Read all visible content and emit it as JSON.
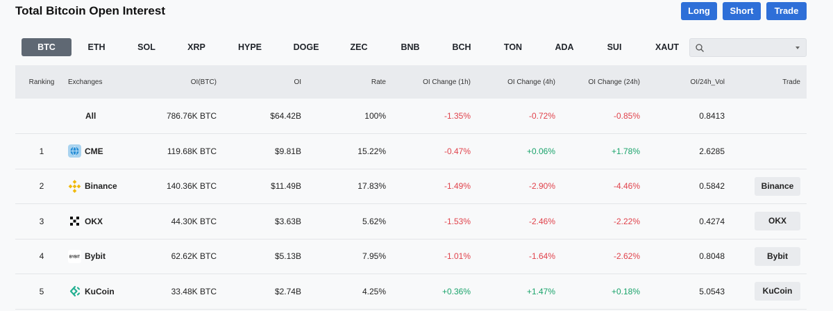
{
  "header": {
    "title": "Total Bitcoin Open Interest",
    "long_label": "Long",
    "short_label": "Short",
    "trade_label": "Trade"
  },
  "tabs": [
    "BTC",
    "ETH",
    "SOL",
    "XRP",
    "HYPE",
    "DOGE",
    "ZEC",
    "BNB",
    "BCH",
    "TON",
    "ADA",
    "SUI",
    "XAUT"
  ],
  "active_tab": "BTC",
  "search": {
    "placeholder": ""
  },
  "columns": [
    "Ranking",
    "Exchanges",
    "OI(BTC)",
    "OI",
    "Rate",
    "OI Change (1h)",
    "OI Change (4h)",
    "OI Change (24h)",
    "OI/24h_Vol",
    "Trade"
  ],
  "rows": [
    {
      "rank": "",
      "exchange": "All",
      "oi_btc": "786.76K BTC",
      "oi": "$64.42B",
      "rate": "100%",
      "ch1h": "-1.35%",
      "ch4h": "-0.72%",
      "ch24h": "-0.85%",
      "vol": "0.8413",
      "trade": ""
    },
    {
      "rank": "1",
      "exchange": "CME",
      "logo": "cme-logo-icon",
      "oi_btc": "119.68K BTC",
      "oi": "$9.81B",
      "rate": "15.22%",
      "ch1h": "-0.47%",
      "ch4h": "+0.06%",
      "ch24h": "+1.78%",
      "vol": "2.6285",
      "trade": ""
    },
    {
      "rank": "2",
      "exchange": "Binance",
      "logo": "binance-logo-icon",
      "oi_btc": "140.36K BTC",
      "oi": "$11.49B",
      "rate": "17.83%",
      "ch1h": "-1.49%",
      "ch4h": "-2.90%",
      "ch24h": "-4.46%",
      "vol": "0.5842",
      "trade": "Binance"
    },
    {
      "rank": "3",
      "exchange": "OKX",
      "logo": "okx-logo-icon",
      "oi_btc": "44.30K BTC",
      "oi": "$3.63B",
      "rate": "5.62%",
      "ch1h": "-1.53%",
      "ch4h": "-2.46%",
      "ch24h": "-2.22%",
      "vol": "0.4274",
      "trade": "OKX"
    },
    {
      "rank": "4",
      "exchange": "Bybit",
      "logo": "bybit-logo-icon",
      "logo_text": "BYBIT",
      "oi_btc": "62.62K BTC",
      "oi": "$5.13B",
      "rate": "7.95%",
      "ch1h": "-1.01%",
      "ch4h": "-1.64%",
      "ch24h": "-2.62%",
      "vol": "0.8048",
      "trade": "Bybit"
    },
    {
      "rank": "5",
      "exchange": "KuCoin",
      "logo": "kucoin-logo-icon",
      "oi_btc": "33.48K BTC",
      "oi": "$2.74B",
      "rate": "4.25%",
      "ch1h": "+0.36%",
      "ch4h": "+1.47%",
      "ch24h": "+0.18%",
      "vol": "5.0543",
      "trade": "KuCoin"
    }
  ],
  "colors": {
    "accent": "#2e6fd8",
    "negative": "#e0424b",
    "positive": "#1aa36b",
    "active_tab": "#5f6873"
  }
}
